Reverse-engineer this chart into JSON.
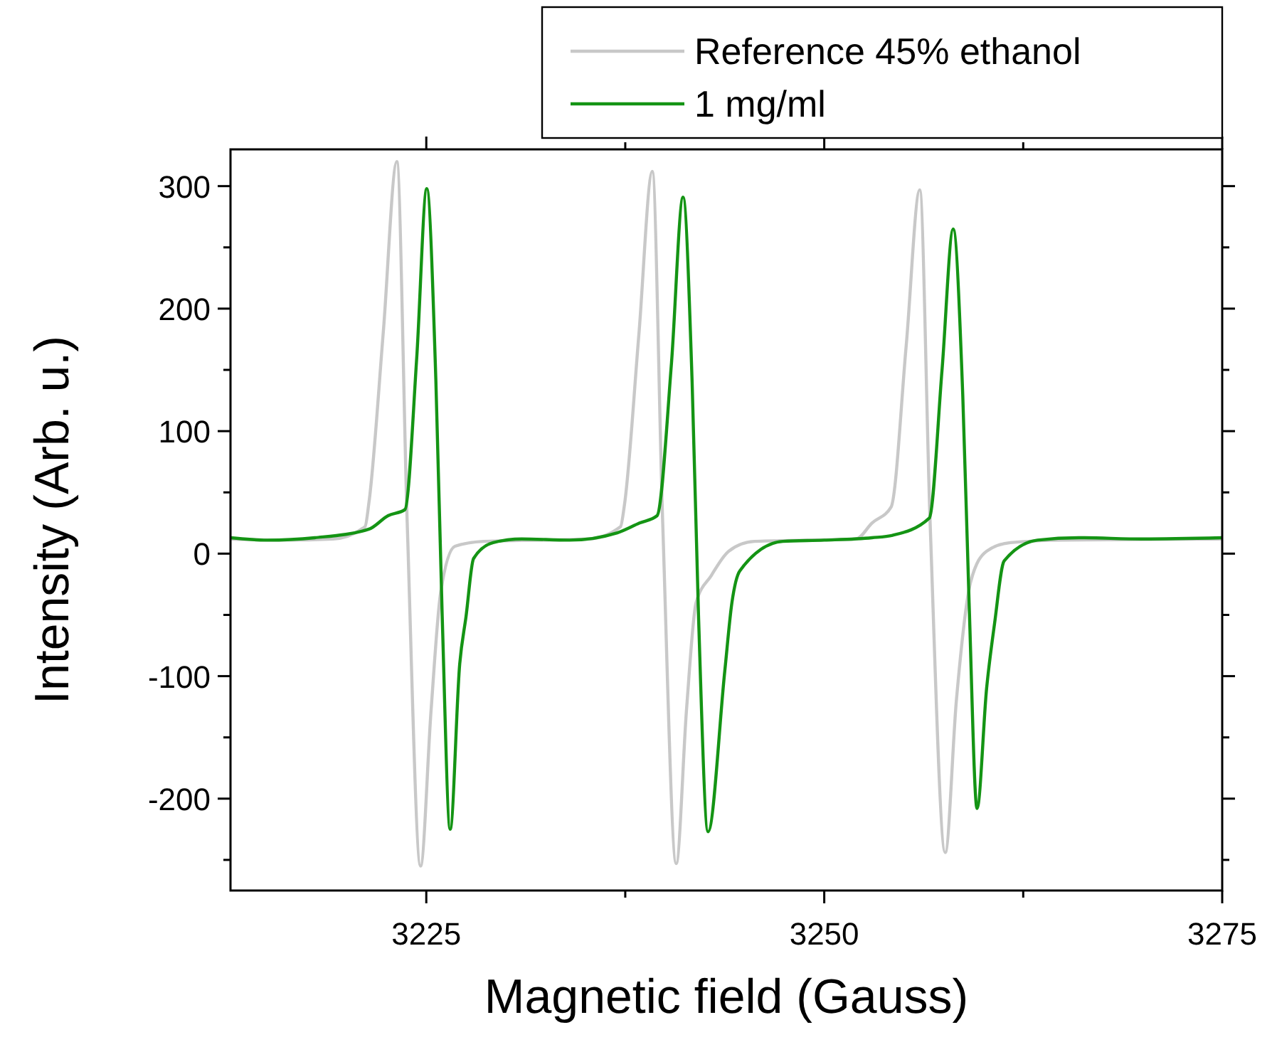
{
  "chart_data": {
    "type": "line",
    "xlabel": "Magnetic field (Gauss)",
    "ylabel": "Intensity (Arb. u.)",
    "xlim": [
      3212.7,
      3275
    ],
    "ylim": [
      -275,
      330
    ],
    "xticks": [
      3225,
      {
        "value": 3237.5,
        "label": null
      },
      3250,
      {
        "value": 3262.5,
        "label": null
      },
      3275
    ],
    "yticks": [
      {
        "value": -250,
        "label": null
      },
      -200,
      {
        "value": -150,
        "label": null
      },
      -100,
      {
        "value": -50,
        "label": null
      },
      0,
      {
        "value": 50,
        "label": null
      },
      100,
      {
        "value": 150,
        "label": null
      },
      200,
      {
        "value": 250,
        "label": null
      },
      300
    ],
    "grid": false,
    "legend": "top right",
    "line_style": "solid",
    "marker": "none",
    "series": [
      {
        "name": "Reference 45% ethanol",
        "color": "#c8c8c8",
        "x": [
          3212.7,
          3216,
          3219.15,
          3221.15,
          3221.4,
          3222.3,
          3223.15,
          3223.8,
          3224.64,
          3225.3,
          3225.9,
          3226.8,
          3228.6,
          3232,
          3235.2,
          3237.2,
          3237.45,
          3238.35,
          3239.2,
          3239.85,
          3240.7,
          3241.35,
          3241.95,
          3242.9,
          3244,
          3245.6,
          3249,
          3252,
          3253,
          3254.2,
          3255.15,
          3256,
          3256.65,
          3257.6,
          3258.3,
          3259.2,
          3260.2,
          3261.7,
          3265,
          3275
        ],
        "values": [
          12,
          11,
          12,
          22,
          42,
          181,
          320,
          26,
          -255,
          -128,
          -32,
          6,
          10,
          11,
          12,
          22,
          40,
          178,
          312,
          26,
          -253,
          -127,
          -40,
          -18,
          2,
          10,
          11,
          12,
          25,
          38,
          170,
          297,
          26,
          -244,
          -120,
          -23,
          2,
          9,
          11,
          12
        ]
      },
      {
        "name": "1 mg/ml",
        "color": "#149414",
        "x": [
          3212.7,
          3215,
          3218,
          3221.4,
          3222.6,
          3223.66,
          3224.4,
          3225.03,
          3225.6,
          3226,
          3226.5,
          3227.1,
          3227.5,
          3227.97,
          3229.2,
          3231,
          3234,
          3237,
          3238.4,
          3239.5,
          3240.4,
          3241.13,
          3241.7,
          3242.1,
          3242.7,
          3243.75,
          3244.2,
          3244.7,
          3247.4,
          3250,
          3253,
          3254.3,
          3256.6,
          3257.4,
          3258.1,
          3258.7,
          3259.1,
          3259.6,
          3260.2,
          3260.7,
          3261.3,
          3263.4,
          3266,
          3270,
          3275
        ],
        "values": [
          13,
          11,
          13,
          20,
          31,
          36,
          160,
          298,
          142,
          -51,
          -225,
          -90,
          -51,
          -4,
          9,
          12,
          11,
          17,
          25,
          31,
          155,
          291,
          140,
          -50,
          -227,
          -96,
          -40,
          -14,
          10,
          11,
          13,
          15,
          29,
          150,
          265,
          130,
          -40,
          -208,
          -110,
          -57,
          -6,
          11,
          13,
          12,
          13
        ]
      }
    ]
  }
}
